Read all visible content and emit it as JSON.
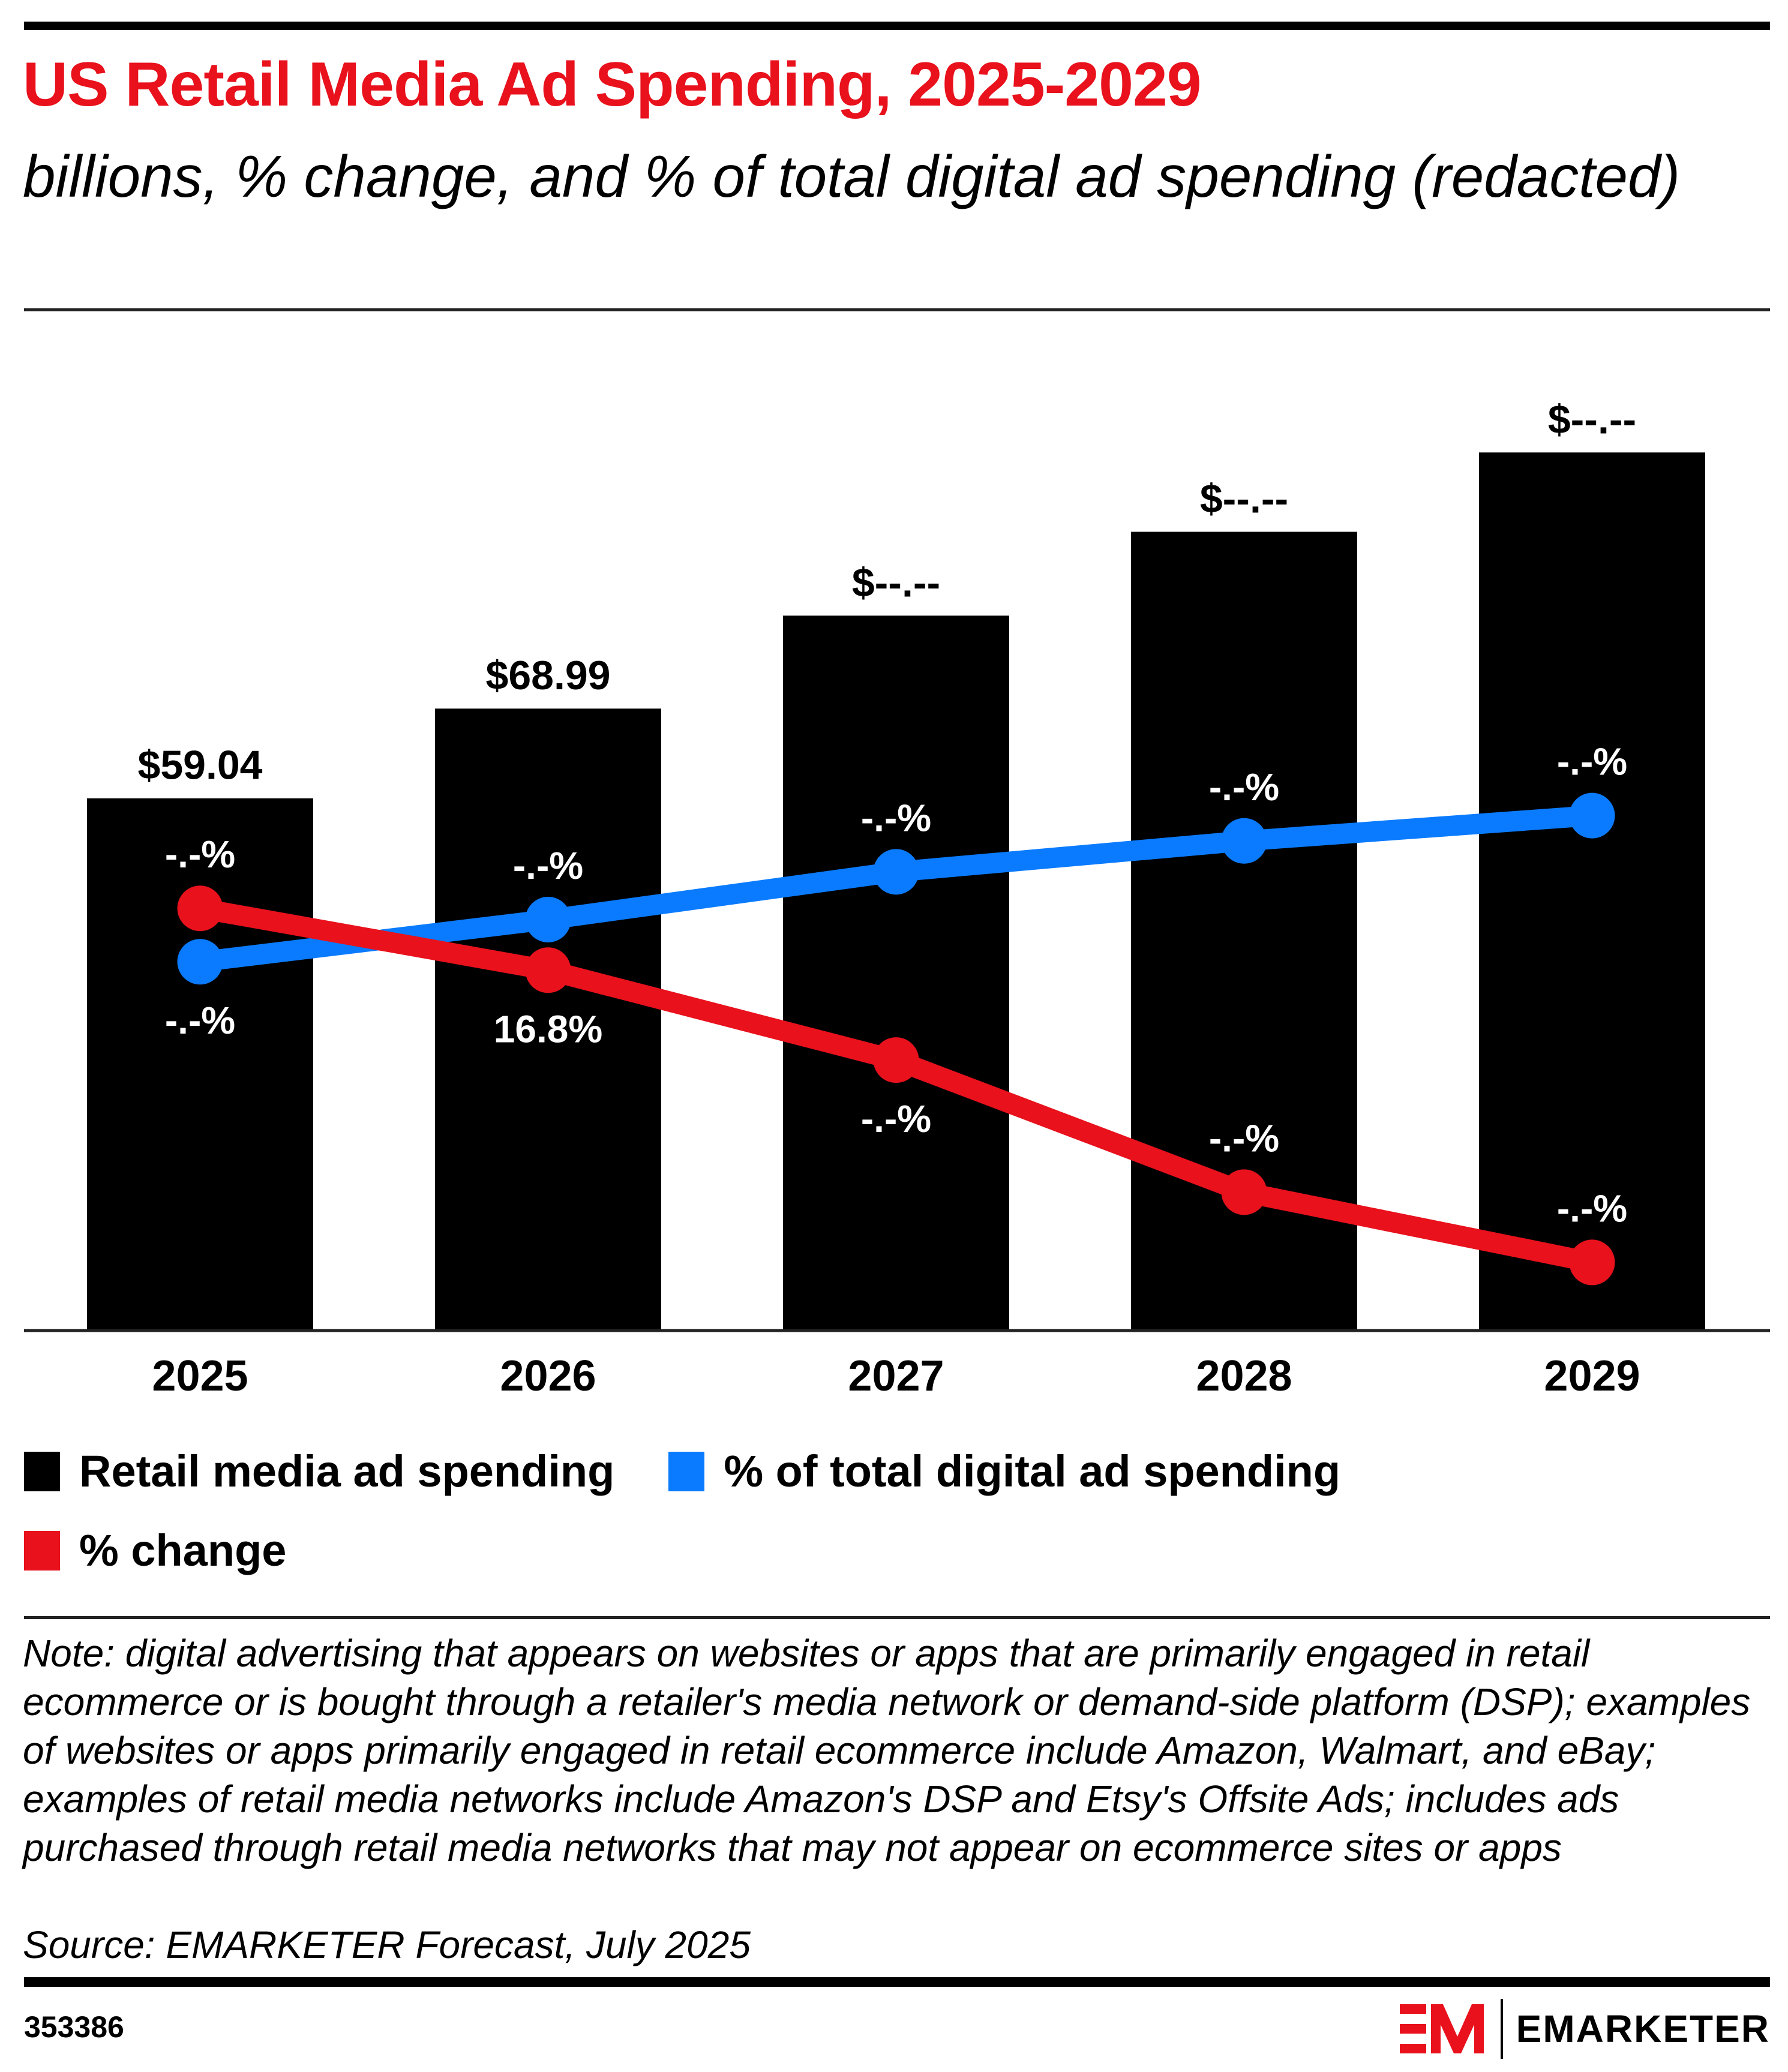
{
  "header": {
    "title": "US Retail Media Ad Spending, 2025-2029",
    "subtitle": "billions, % change, and % of total digital ad spending (redacted)"
  },
  "chart_data": {
    "type": "bar",
    "title": "US Retail Media Ad Spending, 2025-2029",
    "subtitle": "billions, % change, and % of total digital ad spending (redacted)",
    "categories": [
      "2025",
      "2026",
      "2027",
      "2028",
      "2029"
    ],
    "xlabel": "",
    "ylabel": "",
    "grid": false,
    "legend_position": "bottom",
    "series": [
      {
        "name": "Retail media ad spending",
        "type": "bar",
        "color": "#000000",
        "values": [
          59.04,
          68.99,
          79.3,
          88.6,
          97.4
        ],
        "labels": [
          "$59.04",
          "$68.99",
          "$--.--",
          "$--.--",
          "$--.--"
        ],
        "ylim": [
          0,
          107
        ]
      },
      {
        "name": "% of total digital ad spending",
        "type": "line",
        "color": "#0A7BFF",
        "values": [
          17.1,
          18.6,
          20.3,
          21.4,
          22.3
        ],
        "labels": [
          "-.-%",
          "-.-%",
          "-.-%",
          "-.-%",
          "-.-%"
        ],
        "label_position": [
          "below",
          "above",
          "above",
          "above",
          "above"
        ]
      },
      {
        "name": "% change",
        "type": "line",
        "color": "#E8111C",
        "values": [
          19.0,
          16.8,
          13.6,
          8.9,
          6.4
        ],
        "labels": [
          "-.-%",
          "16.8%",
          "-.-%",
          "-.-%",
          "-.-%"
        ],
        "label_position": [
          "above",
          "below",
          "below",
          "above",
          "above"
        ]
      }
    ]
  },
  "legend": [
    {
      "label": "Retail media ad spending",
      "color": "#000000"
    },
    {
      "label": "% of total digital ad spending",
      "color": "#0A7BFF"
    },
    {
      "label": "% change",
      "color": "#E8111C"
    }
  ],
  "footer": {
    "note": "Note: digital advertising that appears on websites or apps that are primarily engaged in retail ecommerce or is bought through a retailer's media network or demand-side platform (DSP); examples of websites or apps primarily engaged in retail ecommerce include Amazon, Walmart, and eBay; examples of retail media networks include Amazon's DSP and Etsy's Offsite Ads; includes ads purchased through retail media networks that may not appear on ecommerce sites or apps",
    "source": "Source: EMARKETER Forecast, July 2025",
    "chart_id": "353386",
    "brand": "EMARKETER",
    "brand_color": "#E8111C"
  }
}
